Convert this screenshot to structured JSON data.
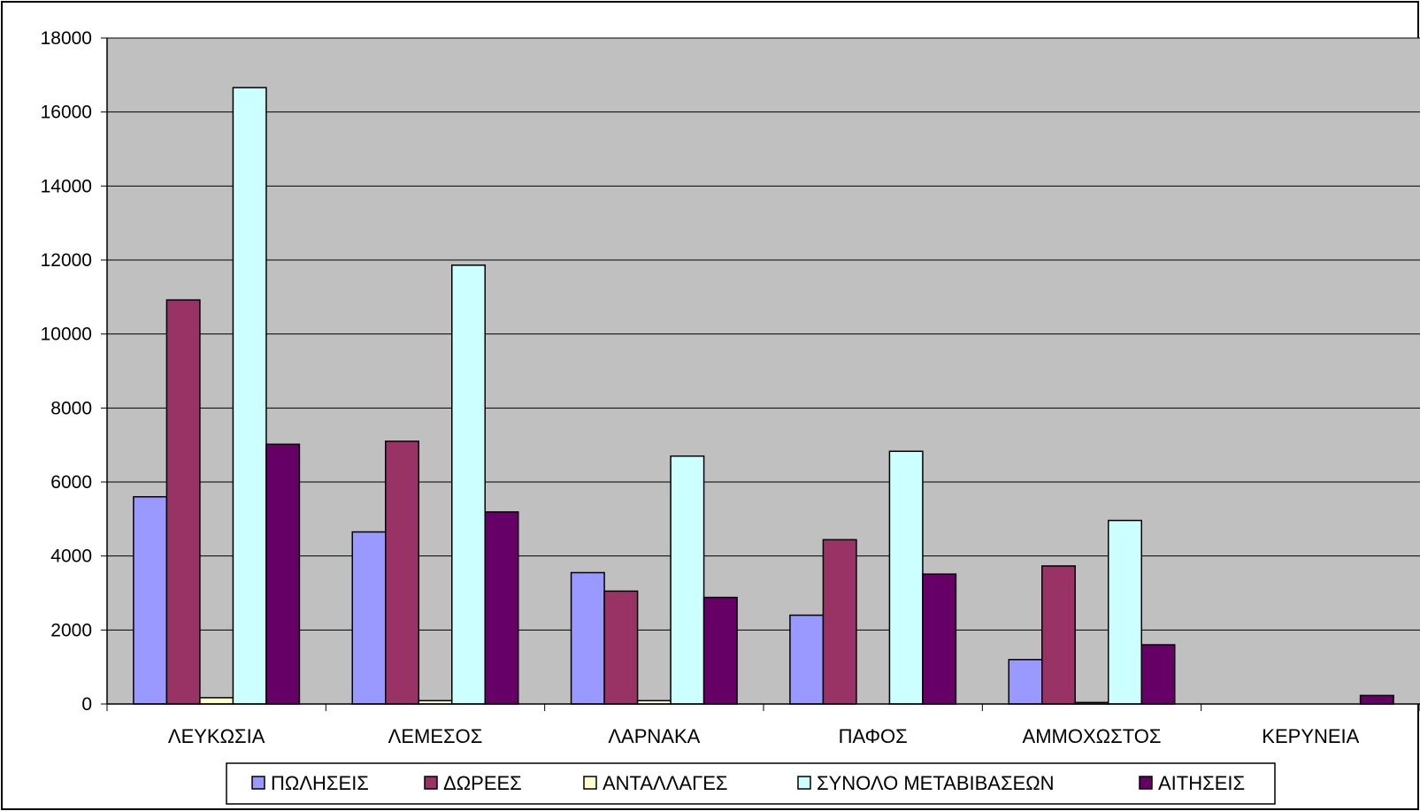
{
  "chart_data": {
    "type": "bar",
    "title": "",
    "xlabel": "",
    "ylabel": "",
    "ylim": [
      0,
      18000
    ],
    "yticks": [
      0,
      2000,
      4000,
      6000,
      8000,
      10000,
      12000,
      14000,
      16000,
      18000
    ],
    "grid": true,
    "legend_position": "bottom",
    "plot_background": "#C0C0C0",
    "categories": [
      "ΛΕΥΚΩΣΙΑ",
      "ΛΕΜΕΣΟΣ",
      "ΛΑΡΝΑΚΑ",
      "ΠΑΦΟΣ",
      "ΑΜΜΟΧΩΣΤΟΣ",
      "ΚΕΡΥΝΕΙΑ"
    ],
    "series": [
      {
        "name": "ΠΩΛΗΣΕΙΣ",
        "color": "#9999FF",
        "values": [
          5600,
          4650,
          3550,
          2400,
          1200,
          0
        ]
      },
      {
        "name": "ΔΩΡΕΕΣ",
        "color": "#993366",
        "values": [
          10920,
          7100,
          3050,
          4440,
          3730,
          0
        ]
      },
      {
        "name": "ΑΝΤΑΛΛΑΓΕΣ",
        "color": "#FFFFCC",
        "values": [
          170,
          90,
          90,
          0,
          40,
          0
        ]
      },
      {
        "name": "ΣΥΝΟΛΟ ΜΕΤΑΒΙΒΑΣΕΩΝ",
        "color": "#CCFFFF",
        "values": [
          16660,
          11860,
          6700,
          6830,
          4960,
          0
        ]
      },
      {
        "name": "ΑΙΤΗΣΕΙΣ",
        "color": "#660066",
        "values": [
          7020,
          5190,
          2880,
          3510,
          1600,
          230
        ]
      }
    ]
  }
}
